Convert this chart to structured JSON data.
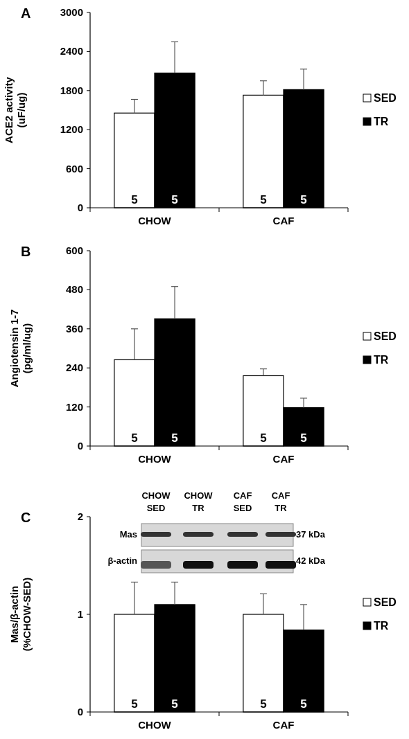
{
  "chart_data": [
    {
      "type": "bar",
      "title": "A",
      "ylabel": "ACE2 activity\n(uF/ug)",
      "categories": [
        "CHOW",
        "CAF"
      ],
      "ylim": [
        0,
        3000
      ],
      "yticks": [
        0,
        600,
        1200,
        1800,
        2400,
        3000
      ],
      "legend": "right",
      "series": [
        {
          "name": "SED",
          "color": "#ffffff",
          "values": [
            1455,
            1730
          ],
          "errors": [
            [
              1455,
              1665
            ],
            [
              1730,
              1950
            ]
          ]
        },
        {
          "name": "TR",
          "color": "#000000",
          "values": [
            2070,
            1815
          ],
          "errors": [
            [
              2070,
              2550
            ],
            [
              1815,
              2130
            ]
          ]
        }
      ],
      "annotations": [
        {
          "text": "5",
          "x": "CHOW",
          "y": 0
        },
        {
          "text": "5",
          "x": "CHOW",
          "y": 0
        },
        {
          "text": "5",
          "x": "CAF",
          "y": 0
        },
        {
          "text": "5",
          "x": "CAF",
          "y": 0
        }
      ]
    },
    {
      "type": "bar",
      "title": "B",
      "ylabel": "Angiotensin 1-7\n(pg/ml/ug)",
      "categories": [
        "CHOW",
        "CAF"
      ],
      "ylim": [
        0,
        600
      ],
      "yticks": [
        0,
        120,
        240,
        360,
        480,
        600
      ],
      "legend": "right",
      "series": [
        {
          "name": "SED",
          "color": "#ffffff",
          "values": [
            265,
            216
          ],
          "errors": [
            [
              265,
              360
            ],
            [
              216,
              237
            ]
          ]
        },
        {
          "name": "TR",
          "color": "#000000",
          "values": [
            391,
            118
          ],
          "errors": [
            [
              391,
              490
            ],
            [
              118,
              147
            ]
          ]
        }
      ],
      "annotations": [
        {
          "text": "5",
          "x": "CHOW",
          "y": 0
        },
        {
          "text": "5",
          "x": "CHOW",
          "y": 0
        },
        {
          "text": "5",
          "x": "CAF",
          "y": 0
        },
        {
          "text": "5",
          "x": "CAF",
          "y": 0
        }
      ]
    },
    {
      "type": "bar",
      "title": "C",
      "ylabel": "Mas/β-actin\n(%CHOW-SED)",
      "categories": [
        "CHOW",
        "CAF"
      ],
      "ylim": [
        0,
        2
      ],
      "yticks": [
        0,
        1,
        2
      ],
      "legend": "right",
      "series": [
        {
          "name": "SED",
          "color": "#ffffff",
          "values": [
            1.0,
            1.0
          ],
          "errors": [
            [
              1.0,
              1.33
            ],
            [
              1.0,
              1.21
            ]
          ]
        },
        {
          "name": "TR",
          "color": "#000000",
          "values": [
            1.1,
            0.84
          ],
          "errors": [
            [
              1.1,
              1.33
            ],
            [
              0.84,
              1.1
            ]
          ]
        }
      ],
      "annotations": [
        {
          "text": "5",
          "x": "CHOW",
          "y": 0
        },
        {
          "text": "5",
          "x": "CHOW",
          "y": 0
        },
        {
          "text": "5",
          "x": "CAF",
          "y": 0
        },
        {
          "text": "5",
          "x": "CAF",
          "y": 0
        },
        "CHOW\nSED",
        "CHOW\nTR",
        "CAF\nSED",
        "CAF\nTR",
        "Mas",
        "β-actin",
        "37 kDa",
        "42 kDa"
      ]
    }
  ]
}
